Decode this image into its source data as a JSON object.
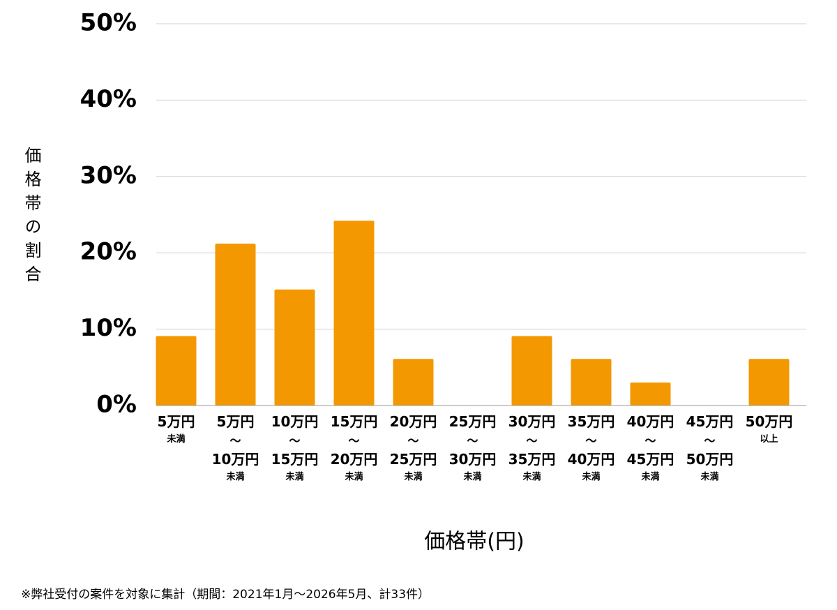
{
  "chart_data": {
    "type": "bar",
    "categories": [
      "5万円\n未満",
      "5万円\n〜\n10万円\n未満",
      "10万円\n〜\n15万円\n未満",
      "15万円\n〜\n20万円\n未満",
      "20万円\n〜\n25万円\n未満",
      "25万円\n〜\n30万円\n未満",
      "30万円\n〜\n35万円\n未満",
      "35万円\n〜\n40万円\n未満",
      "40万円\n〜\n45万円\n未満",
      "45万円\n〜\n50万円\n未満",
      "50万円\n以上"
    ],
    "values": [
      9.1,
      21.2,
      15.2,
      24.2,
      6.1,
      0,
      9.1,
      6.1,
      3.0,
      0,
      6.1
    ],
    "color": "#f39800",
    "ylim": [
      0,
      50
    ],
    "yticks": [
      {
        "value": 0,
        "label": "0%"
      },
      {
        "value": 10,
        "label": "10%"
      },
      {
        "value": 20,
        "label": "20%"
      },
      {
        "value": 30,
        "label": "30%"
      },
      {
        "value": 40,
        "label": "40%"
      },
      {
        "value": 50,
        "label": "50%"
      }
    ],
    "grid": true,
    "y_label": "価格帯の割合",
    "x_label": "価格帯(円)",
    "footnote": "※弊社受付の案件を対象に集計（期間：2021年1月〜2026年5月、計33件）"
  }
}
